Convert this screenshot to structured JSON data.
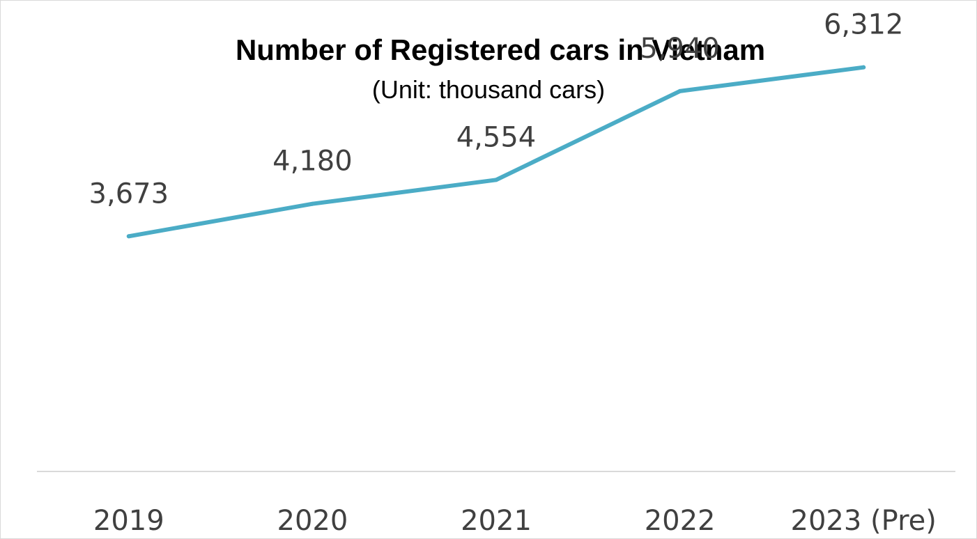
{
  "chart_data": {
    "type": "line",
    "title": "Number of Registered cars in Vietnam",
    "subtitle": "(Unit: thousand cars)",
    "categories": [
      "2019",
      "2020",
      "2021",
      "2022",
      "2023 (Pre)"
    ],
    "series": [
      {
        "values": [
          3673,
          4180,
          4554,
          5940,
          6312
        ],
        "labels": [
          "3,673",
          "4,180",
          "4,554",
          "5,940",
          "6,312"
        ],
        "color": "#4BACC6"
      }
    ],
    "ylim": [
      0,
      6700
    ],
    "grid": false,
    "legend": "none",
    "axis_color": "#d9d9d9"
  }
}
